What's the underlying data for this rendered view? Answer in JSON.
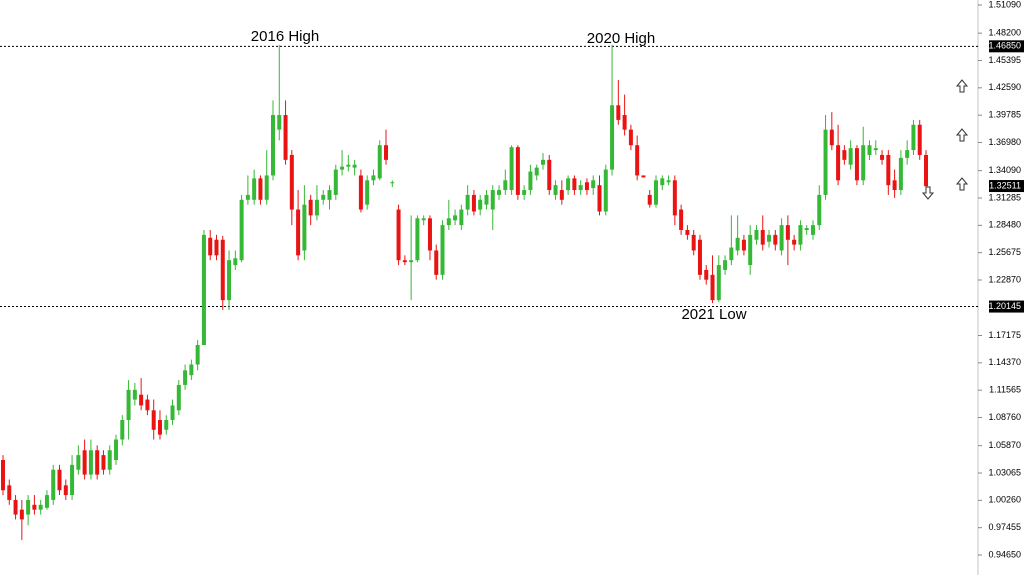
{
  "chart_data": {
    "type": "candlestick",
    "annotations": [
      "2016 High",
      "2020 High",
      "2021 Low"
    ],
    "up_color": "#35b835",
    "down_color": "#ea1313",
    "ylim": [
      0.9465,
      1.5109
    ],
    "yticks": [
      {
        "value": 1.5109,
        "label": "1.51090"
      },
      {
        "value": 1.482,
        "label": "1.48200"
      },
      {
        "value": 1.45395,
        "label": "1.45395"
      },
      {
        "value": 1.4259,
        "label": "1.42590"
      },
      {
        "value": 1.39785,
        "label": "1.39785"
      },
      {
        "value": 1.3698,
        "label": "1.36980"
      },
      {
        "value": 1.3409,
        "label": "1.34090"
      },
      {
        "value": 1.31285,
        "label": "1.31285"
      },
      {
        "value": 1.2848,
        "label": "1.28480"
      },
      {
        "value": 1.25675,
        "label": "1.25675"
      },
      {
        "value": 1.2287,
        "label": "1.22870"
      },
      {
        "value": 1.17175,
        "label": "1.17175"
      },
      {
        "value": 1.1437,
        "label": "1.14370"
      },
      {
        "value": 1.11565,
        "label": "1.11565"
      },
      {
        "value": 1.0876,
        "label": "1.08760"
      },
      {
        "value": 1.0587,
        "label": "1.05870"
      },
      {
        "value": 1.03065,
        "label": "1.03065"
      },
      {
        "value": 1.0026,
        "label": "1.00260"
      },
      {
        "value": 0.97455,
        "label": "0.97455"
      },
      {
        "value": 0.9465,
        "label": "0.94650"
      }
    ],
    "levels": [
      {
        "value": 1.4685,
        "label": "1.46850"
      },
      {
        "value": 1.20145,
        "label": "1.20145"
      }
    ],
    "current_price": {
      "value": 1.32511,
      "label": "1.32511"
    },
    "open": [
      1.044,
      1.018,
      1.003,
      0.993,
      0.988,
      0.998,
      0.993,
      0.995,
      1.003,
      1.034,
      1.018,
      1.008,
      1.034,
      1.054,
      1.029,
      1.054,
      1.049,
      1.034,
      1.044,
      1.065,
      1.085,
      1.106,
      1.111,
      1.106,
      1.095,
      1.085,
      1.075,
      1.085,
      1.095,
      1.121,
      1.131,
      1.142,
      1.162,
      1.272,
      1.27,
      1.27,
      1.208,
      1.244,
      1.249,
      1.311,
      1.311,
      1.333,
      1.311,
      1.336,
      1.383,
      1.398,
      1.357,
      1.301,
      1.259,
      1.311,
      1.295,
      1.311,
      1.311,
      1.316,
      1.342,
      1.345,
      1.344,
      1.336,
      1.306,
      1.331,
      1.333,
      1.367,
      1.328,
      1.301,
      1.249,
      1.247,
      1.249,
      1.29,
      1.292,
      1.259,
      1.234,
      1.285,
      1.29,
      1.285,
      1.301,
      1.316,
      1.301,
      1.306,
      1.301,
      1.316,
      1.321,
      1.321,
      1.365,
      1.316,
      1.321,
      1.336,
      1.347,
      1.352,
      1.316,
      1.321,
      1.321,
      1.333,
      1.321,
      1.329,
      1.323,
      1.326,
      1.299,
      1.342,
      1.408,
      1.398,
      1.383,
      1.367,
      1.336,
      1.316,
      1.306,
      1.326,
      1.329,
      1.331,
      1.301,
      1.28,
      1.275,
      1.27,
      1.239,
      1.234,
      1.208,
      1.239,
      1.249,
      1.259,
      1.27,
      1.244,
      1.27,
      1.28,
      1.268,
      1.275,
      1.259,
      1.285,
      1.27,
      1.265,
      1.28,
      1.275,
      1.285,
      1.316,
      1.383,
      1.367,
      1.362,
      1.347,
      1.364,
      1.331,
      1.357,
      1.362,
      1.357,
      1.357,
      1.331,
      1.321,
      1.354,
      1.362,
      1.388,
      1.357
    ],
    "high": [
      1.049,
      1.024,
      1.008,
      1.003,
      1.008,
      1.008,
      1.003,
      1.013,
      1.039,
      1.039,
      1.024,
      1.049,
      1.059,
      1.065,
      1.065,
      1.059,
      1.054,
      1.059,
      1.07,
      1.09,
      1.126,
      1.123,
      1.128,
      1.111,
      1.106,
      1.095,
      1.09,
      1.106,
      1.126,
      1.142,
      1.147,
      1.167,
      1.28,
      1.28,
      1.275,
      1.274,
      1.259,
      1.259,
      1.316,
      1.336,
      1.342,
      1.336,
      1.362,
      1.413,
      1.47,
      1.413,
      1.362,
      1.321,
      1.326,
      1.316,
      1.326,
      1.321,
      1.326,
      1.347,
      1.362,
      1.357,
      1.352,
      1.342,
      1.336,
      1.342,
      1.372,
      1.383,
      1.331,
      1.306,
      1.254,
      1.295,
      1.295,
      1.295,
      1.295,
      1.265,
      1.29,
      1.311,
      1.301,
      1.306,
      1.326,
      1.321,
      1.316,
      1.321,
      1.326,
      1.326,
      1.342,
      1.367,
      1.367,
      1.326,
      1.347,
      1.347,
      1.359,
      1.357,
      1.331,
      1.331,
      1.336,
      1.336,
      1.331,
      1.333,
      1.336,
      1.336,
      1.347,
      1.47,
      1.434,
      1.419,
      1.388,
      1.377,
      1.336,
      1.321,
      1.336,
      1.336,
      1.336,
      1.336,
      1.306,
      1.285,
      1.28,
      1.275,
      1.244,
      1.254,
      1.254,
      1.254,
      1.295,
      1.295,
      1.275,
      1.285,
      1.285,
      1.295,
      1.28,
      1.28,
      1.292,
      1.295,
      1.275,
      1.29,
      1.285,
      1.29,
      1.326,
      1.398,
      1.401,
      1.388,
      1.367,
      1.372,
      1.367,
      1.386,
      1.372,
      1.372,
      1.362,
      1.362,
      1.342,
      1.362,
      1.372,
      1.393,
      1.393,
      1.362
    ],
    "low": [
      1.008,
      0.998,
      0.983,
      0.962,
      0.977,
      0.988,
      0.988,
      0.993,
      0.998,
      1.008,
      1.003,
      1.003,
      1.029,
      1.024,
      1.024,
      1.024,
      1.029,
      1.029,
      1.039,
      1.059,
      1.065,
      1.1,
      1.095,
      1.09,
      1.065,
      1.065,
      1.07,
      1.08,
      1.09,
      1.116,
      1.126,
      1.136,
      1.162,
      1.249,
      1.249,
      1.198,
      1.198,
      1.239,
      1.247,
      1.306,
      1.306,
      1.306,
      1.306,
      1.331,
      1.372,
      1.347,
      1.285,
      1.249,
      1.249,
      1.285,
      1.29,
      1.306,
      1.301,
      1.311,
      1.336,
      1.34,
      1.336,
      1.298,
      1.301,
      1.326,
      1.331,
      1.347,
      1.324,
      1.244,
      1.244,
      1.208,
      1.247,
      1.285,
      1.249,
      1.229,
      1.229,
      1.28,
      1.285,
      1.28,
      1.295,
      1.295,
      1.295,
      1.301,
      1.28,
      1.311,
      1.316,
      1.316,
      1.311,
      1.311,
      1.316,
      1.331,
      1.342,
      1.316,
      1.311,
      1.306,
      1.316,
      1.316,
      1.316,
      1.316,
      1.316,
      1.295,
      1.295,
      1.336,
      1.388,
      1.377,
      1.362,
      1.331,
      1.334,
      1.303,
      1.303,
      1.321,
      1.326,
      1.285,
      1.275,
      1.27,
      1.254,
      1.229,
      1.224,
      1.205,
      1.206,
      1.234,
      1.244,
      1.254,
      1.254,
      1.234,
      1.265,
      1.259,
      1.262,
      1.259,
      1.254,
      1.244,
      1.259,
      1.259,
      1.275,
      1.27,
      1.28,
      1.311,
      1.362,
      1.326,
      1.347,
      1.342,
      1.326,
      1.326,
      1.352,
      1.357,
      1.347,
      1.316,
      1.313,
      1.316,
      1.347,
      1.357,
      1.352,
      1.321
    ],
    "close": [
      1.013,
      1.003,
      0.988,
      0.983,
      1.003,
      0.993,
      0.998,
      1.008,
      1.034,
      1.013,
      1.008,
      1.039,
      1.049,
      1.029,
      1.054,
      1.029,
      1.034,
      1.054,
      1.065,
      1.085,
      1.116,
      1.116,
      1.1,
      1.095,
      1.075,
      1.07,
      1.085,
      1.1,
      1.121,
      1.136,
      1.142,
      1.162,
      1.275,
      1.254,
      1.254,
      1.208,
      1.249,
      1.251,
      1.311,
      1.316,
      1.333,
      1.311,
      1.336,
      1.398,
      1.398,
      1.352,
      1.301,
      1.254,
      1.306,
      1.295,
      1.311,
      1.316,
      1.321,
      1.342,
      1.345,
      1.347,
      1.347,
      1.301,
      1.331,
      1.336,
      1.367,
      1.352,
      1.329,
      1.249,
      1.247,
      1.249,
      1.292,
      1.292,
      1.259,
      1.234,
      1.285,
      1.292,
      1.295,
      1.301,
      1.316,
      1.299,
      1.311,
      1.316,
      1.321,
      1.321,
      1.331,
      1.365,
      1.316,
      1.321,
      1.34,
      1.344,
      1.352,
      1.321,
      1.326,
      1.311,
      1.333,
      1.321,
      1.326,
      1.321,
      1.331,
      1.299,
      1.342,
      1.408,
      1.393,
      1.383,
      1.367,
      1.336,
      1.334,
      1.306,
      1.331,
      1.333,
      1.331,
      1.295,
      1.28,
      1.275,
      1.259,
      1.234,
      1.229,
      1.208,
      1.244,
      1.249,
      1.262,
      1.272,
      1.259,
      1.275,
      1.28,
      1.265,
      1.275,
      1.265,
      1.285,
      1.27,
      1.265,
      1.285,
      1.282,
      1.285,
      1.316,
      1.383,
      1.367,
      1.331,
      1.352,
      1.364,
      1.331,
      1.367,
      1.367,
      1.364,
      1.352,
      1.326,
      1.321,
      1.354,
      1.362,
      1.388,
      1.357,
      1.325
    ]
  }
}
